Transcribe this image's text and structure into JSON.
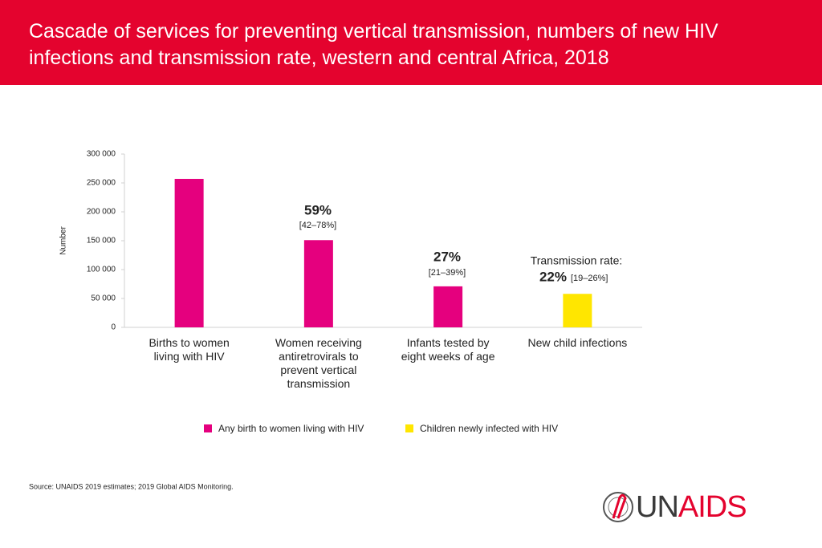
{
  "title": "Cascade of services for preventing vertical transmission, numbers of new HIV infections and transmission rate, western and central Africa, 2018",
  "source": "Source: UNAIDS 2019 estimates; 2019 Global AIDS Monitoring.",
  "logo": {
    "part1": "UN",
    "part2": "AIDS"
  },
  "chart_data": {
    "type": "bar",
    "y_label": "Number",
    "categories": [
      "Births to women\nliving with HIV",
      "Women receiving\nantiretrovirals to\nprevent vertical\ntransmission",
      "Infants tested by\neight weeks of age",
      "New child infections"
    ],
    "series": [
      {
        "name": "Any birth to women living with HIV",
        "color": "#e5007e",
        "values": [
          257000,
          151000,
          71000,
          null
        ]
      },
      {
        "name": "Children newly infected with HIV",
        "color": "#ffe600",
        "values": [
          null,
          null,
          null,
          58000
        ]
      }
    ],
    "ylim": [
      0,
      300000
    ],
    "yticks": [
      0,
      {
        "value": 50000,
        "label": "50 000"
      },
      {
        "value": 100000,
        "label": "100 000"
      },
      {
        "value": 150000,
        "label": "150 000"
      },
      {
        "value": 200000,
        "label": "200 000"
      },
      {
        "value": 250000,
        "label": "250 000"
      },
      {
        "value": 300000,
        "label": "300 000"
      }
    ],
    "annotations": [
      "59%",
      "[42–78%]",
      "27%",
      "[21–39%]",
      "Transmission rate:",
      "22%",
      "[19–26%]"
    ],
    "legend": "bottom"
  }
}
